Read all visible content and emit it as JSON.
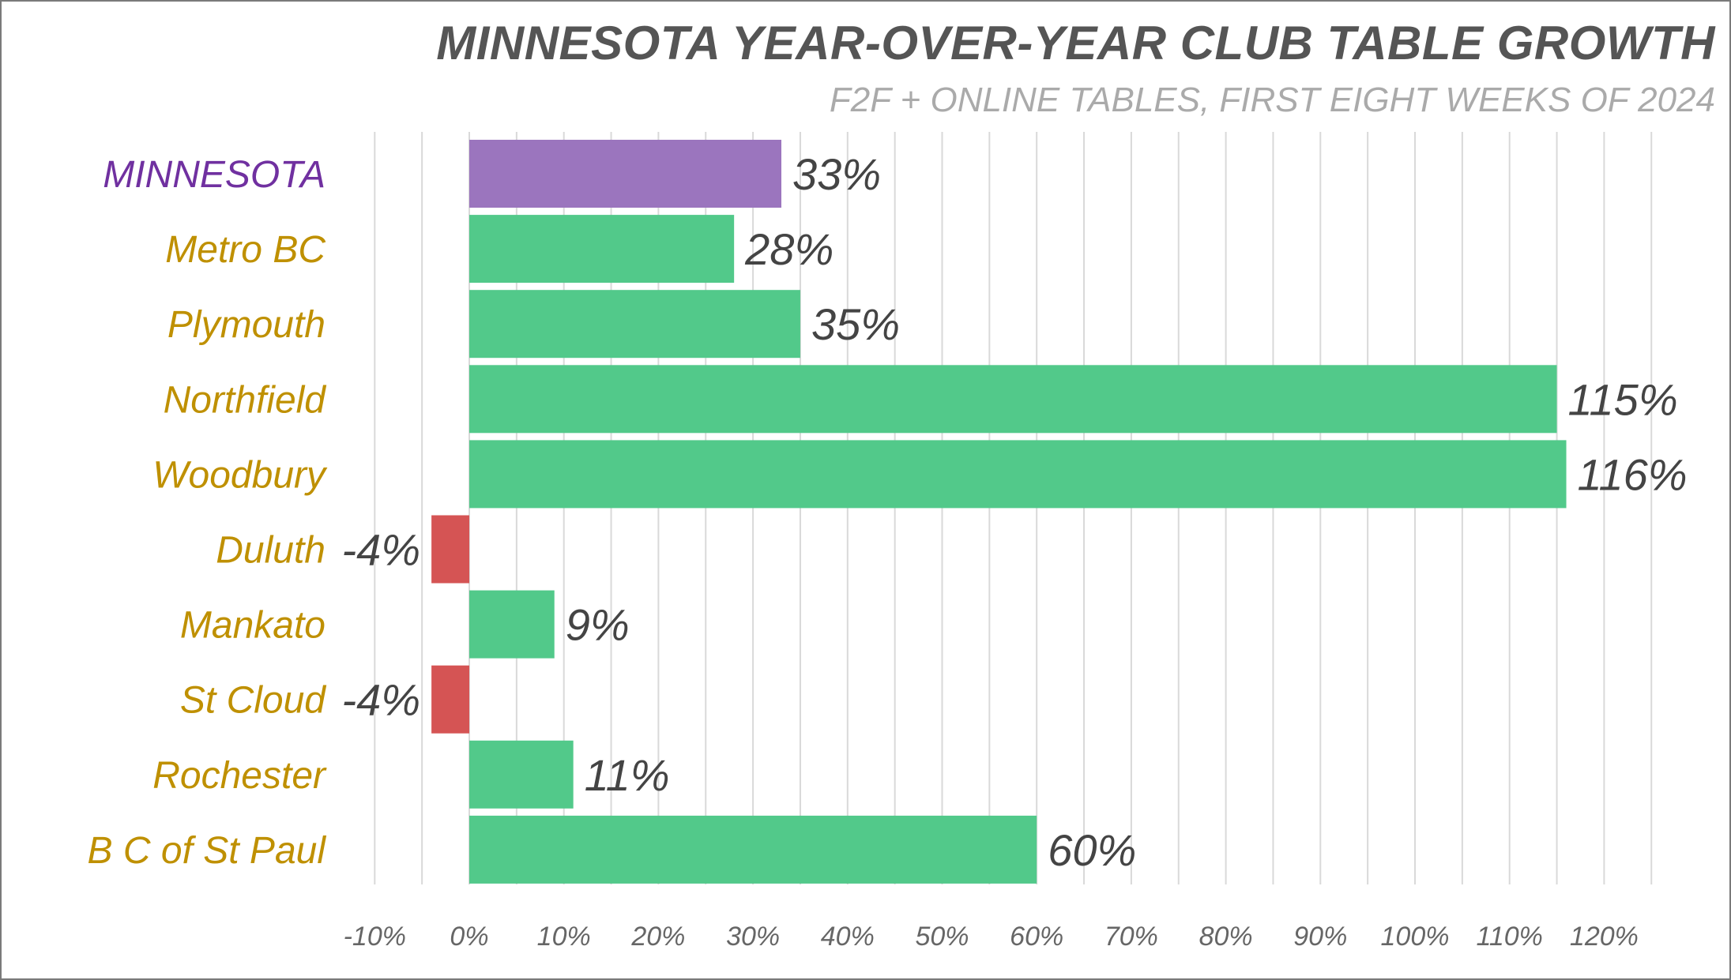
{
  "chart_data": {
    "type": "bar",
    "orientation": "horizontal",
    "title": "MINNESOTA YEAR-OVER-YEAR CLUB TABLE GROWTH",
    "subtitle": "F2F + ONLINE TABLES, FIRST EIGHT WEEKS OF 2024",
    "categories": [
      "MINNESOTA",
      "Metro BC",
      "Plymouth",
      "Northfield",
      "Woodbury",
      "Duluth",
      "Mankato",
      "St Cloud",
      "Rochester",
      "B C of St Paul"
    ],
    "values": [
      33,
      28,
      35,
      115,
      116,
      -4,
      9,
      -4,
      11,
      60
    ],
    "value_labels": [
      "33%",
      "28%",
      "35%",
      "115%",
      "116%",
      "-4%",
      "9%",
      "-4%",
      "11%",
      "60%"
    ],
    "xlim": [
      -10,
      125
    ],
    "xticks": [
      -10,
      0,
      10,
      20,
      30,
      40,
      50,
      60,
      70,
      80,
      90,
      100,
      110,
      120
    ],
    "xtick_labels": [
      "-10%",
      "0%",
      "10%",
      "20%",
      "30%",
      "40%",
      "50%",
      "60%",
      "70%",
      "80%",
      "90%",
      "100%",
      "110%",
      "120%"
    ],
    "grid": true,
    "legend": "none",
    "colors": {
      "total_bar": "#9b75be",
      "positive_bar": "#52c98a",
      "negative_bar": "#d55454",
      "total_label": "#7030a0",
      "club_label": "#bf9000",
      "gridline": "#d9d9d9",
      "value_text": "#444444",
      "tick_text": "#666666"
    }
  }
}
